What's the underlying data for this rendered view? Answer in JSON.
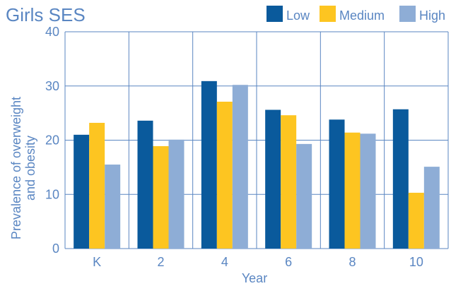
{
  "chart_data": {
    "type": "bar",
    "title": "Girls SES",
    "xlabel": "Year",
    "ylabel_lines": [
      "Prevalence of overweight",
      "and obesity"
    ],
    "categories": [
      "K",
      "2",
      "4",
      "6",
      "8",
      "10"
    ],
    "ylim": [
      0,
      40
    ],
    "yticks": [
      "0",
      "10",
      "20",
      "30",
      "40"
    ],
    "grid": true,
    "legend_position": "top-right",
    "series": [
      {
        "name": "Low",
        "color": "#0a5a9c",
        "values": [
          21.0,
          23.6,
          30.9,
          25.6,
          23.8,
          25.7
        ]
      },
      {
        "name": "Medium",
        "color": "#fdc521",
        "values": [
          23.2,
          18.9,
          27.1,
          24.6,
          21.4,
          10.3
        ]
      },
      {
        "name": "High",
        "color": "#8eadd6",
        "values": [
          15.5,
          20.1,
          30.2,
          19.3,
          21.2,
          15.1
        ]
      }
    ],
    "colors": {
      "grid": "#5a86c2",
      "text": "#5a86c2"
    }
  }
}
